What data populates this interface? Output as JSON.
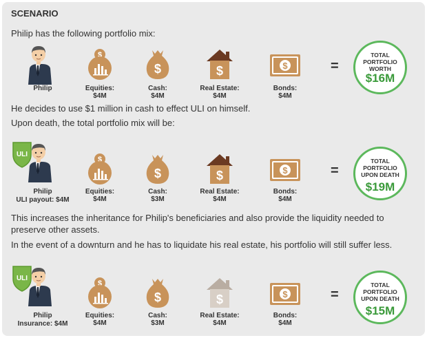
{
  "title": "SCENARIO",
  "intro": "Philip has the following portfolio mix:",
  "para_uli": "He decides to use $1 million in cash to effect ULI on himself.",
  "para_death": "Upon death, the total portfolio mix will be:",
  "para_increase": "This increases the inheritance for Philip's beneficiaries and also provide the liquidity needed to preserve other assets.",
  "para_downturn": "In the event of a downturn and he has to liquidate his real estate, his portfolio will still suffer less.",
  "colors": {
    "accent_green": "#5cb85c",
    "icon_tan": "#c8935a",
    "house_roof": "#6b3a22",
    "badge_green": "#7ab648"
  },
  "rows": [
    {
      "person": {
        "name": "Philip",
        "sub": "",
        "badge": ""
      },
      "equities": {
        "label": "Equities:",
        "value": "$4M"
      },
      "cash": {
        "label": "Cash:",
        "value": "$4M"
      },
      "real_estate": {
        "label": "Real Estate:",
        "value": "$4M",
        "faded": false
      },
      "bonds": {
        "label": "Bonds:",
        "value": "$4M"
      },
      "equals": "=",
      "total": {
        "title": "TOTAL PORTFOLIO WORTH",
        "value": "$16M"
      }
    },
    {
      "person": {
        "name": "Philip",
        "sub": "ULI payout: $4M",
        "badge": "ULI"
      },
      "equities": {
        "label": "Equities:",
        "value": "$4M"
      },
      "cash": {
        "label": "Cash:",
        "value": "$3M"
      },
      "real_estate": {
        "label": "Real Estate:",
        "value": "$4M",
        "faded": false
      },
      "bonds": {
        "label": "Bonds:",
        "value": "$4M"
      },
      "equals": "=",
      "total": {
        "title": "TOTAL PORTFOLIO UPON DEATH",
        "value": "$19M"
      }
    },
    {
      "person": {
        "name": "Philip",
        "sub": "Insurance: $4M",
        "badge": "ULI"
      },
      "equities": {
        "label": "Equities:",
        "value": "$4M"
      },
      "cash": {
        "label": "Cash:",
        "value": "$3M"
      },
      "real_estate": {
        "label": "Real Estate:",
        "value": "$4M",
        "faded": true
      },
      "bonds": {
        "label": "Bonds:",
        "value": "$4M"
      },
      "equals": "=",
      "total": {
        "title": "TOTAL PORTFOLIO UPON DEATH",
        "value": "$15M"
      }
    }
  ]
}
